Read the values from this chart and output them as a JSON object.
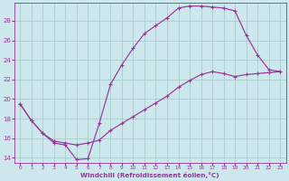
{
  "xlabel": "Windchill (Refroidissement éolien,°C)",
  "bg_color": "#cce8ec",
  "grid_color": "#aacccc",
  "line_color": "#993399",
  "xlim": [
    -0.5,
    23.5
  ],
  "ylim": [
    13.5,
    29.8
  ],
  "xticks": [
    0,
    1,
    2,
    3,
    4,
    5,
    6,
    7,
    8,
    9,
    10,
    11,
    12,
    13,
    14,
    15,
    16,
    17,
    18,
    19,
    20,
    21,
    22,
    23
  ],
  "yticks": [
    14,
    16,
    18,
    20,
    22,
    24,
    26,
    28
  ],
  "line1_x": [
    0,
    1,
    2,
    3,
    4,
    5,
    6,
    7,
    8,
    9,
    10,
    11,
    12,
    13,
    14,
    15,
    16,
    17,
    18,
    19,
    20,
    21,
    22,
    23
  ],
  "line1_y": [
    19.5,
    17.8,
    16.5,
    15.5,
    15.3,
    13.8,
    13.9,
    17.5,
    21.5,
    23.5,
    25.2,
    26.7,
    27.5,
    28.3,
    29.3,
    29.5,
    29.5,
    29.4,
    29.3,
    29.0,
    26.5,
    24.5,
    23.0,
    22.8
  ],
  "line2_x": [
    0,
    1,
    2,
    3,
    4,
    5,
    6,
    7,
    8,
    9,
    10,
    11,
    12,
    13,
    14,
    15,
    16,
    17,
    18,
    19,
    20,
    21,
    22,
    23
  ],
  "line2_y": [
    19.5,
    17.8,
    16.5,
    15.7,
    15.5,
    15.3,
    15.5,
    15.8,
    16.8,
    17.5,
    18.2,
    18.9,
    19.6,
    20.3,
    21.2,
    21.9,
    22.5,
    22.8,
    22.6,
    22.3,
    22.5,
    22.6,
    22.7,
    22.8
  ]
}
